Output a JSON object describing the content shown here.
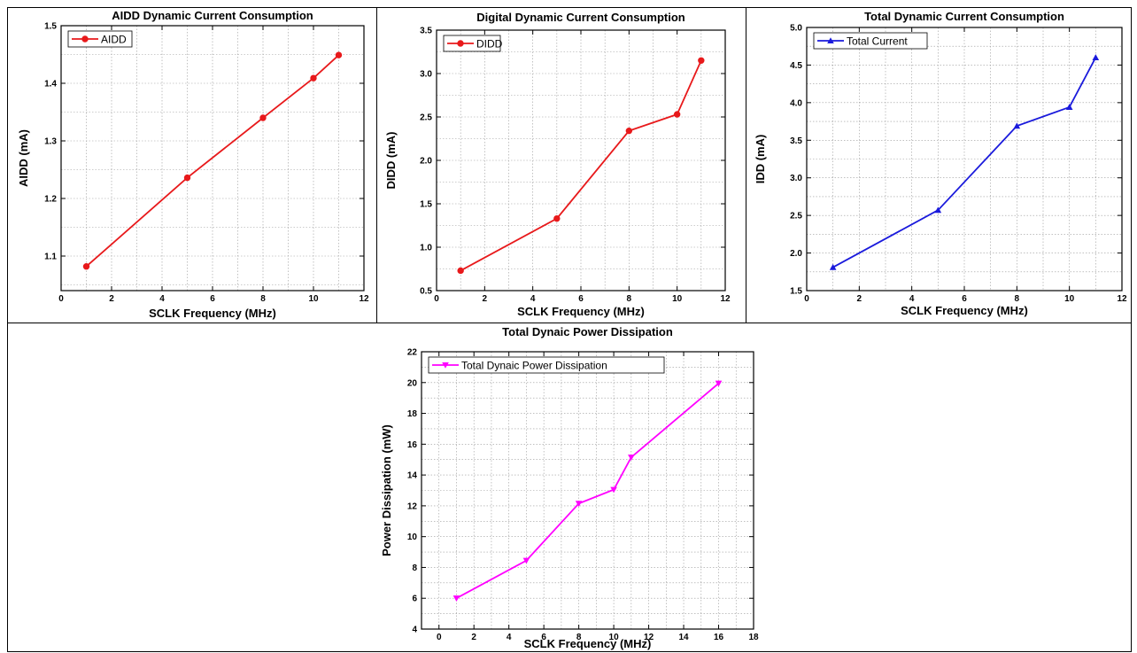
{
  "chart_data": [
    {
      "type": "line",
      "title": "AIDD Dynamic Current Consumption",
      "xlabel": "SCLK Frequency (MHz)",
      "ylabel": "AIDD (mA)",
      "xlim": [
        0,
        12
      ],
      "ylim": [
        1.04,
        1.5
      ],
      "xticks": [
        0,
        2,
        4,
        6,
        8,
        10,
        12
      ],
      "yticks": [
        1.1,
        1.2,
        1.3,
        1.4,
        1.5
      ],
      "ytick_labels": [
        "1.1",
        "1.2",
        "1.3",
        "1.4",
        "1.5"
      ],
      "xtick_labels": [
        "0",
        "2",
        "4",
        "6",
        "8",
        "10",
        "12"
      ],
      "grid": true,
      "legend_position": "top-left",
      "series": [
        {
          "name": "AIDD",
          "color": "#e8191b",
          "marker": "circle",
          "x": [
            1,
            5,
            8,
            10,
            11
          ],
          "y": [
            1.082,
            1.236,
            1.34,
            1.409,
            1.449
          ]
        }
      ]
    },
    {
      "type": "line",
      "title": "Digital Dynamic Current Consumption",
      "xlabel": "SCLK Frequency (MHz)",
      "ylabel": "DIDD (mA)",
      "xlim": [
        0,
        12
      ],
      "ylim": [
        0.5,
        3.5
      ],
      "xticks": [
        0,
        2,
        4,
        6,
        8,
        10,
        12
      ],
      "yticks": [
        0.5,
        1.0,
        1.5,
        2.0,
        2.5,
        3.0,
        3.5
      ],
      "ytick_labels": [
        "0.5",
        "1.0",
        "1.5",
        "2.0",
        "2.5",
        "3.0",
        "3.5"
      ],
      "xtick_labels": [
        "0",
        "2",
        "4",
        "6",
        "8",
        "10",
        "12"
      ],
      "grid": true,
      "legend_position": "top-left",
      "series": [
        {
          "name": "DIDD",
          "color": "#e8191b",
          "marker": "circle",
          "x": [
            1,
            5,
            8,
            10,
            11
          ],
          "y": [
            0.73,
            1.33,
            2.34,
            2.53,
            3.15
          ]
        }
      ]
    },
    {
      "type": "line",
      "title": "Total Dynamic Current Consumption",
      "xlabel": "SCLK Frequency (MHz)",
      "ylabel": "IDD (mA)",
      "xlim": [
        0,
        12
      ],
      "ylim": [
        1.5,
        5.0
      ],
      "xticks": [
        0,
        2,
        4,
        6,
        8,
        10,
        12
      ],
      "yticks": [
        1.5,
        2.0,
        2.5,
        3.0,
        3.5,
        4.0,
        4.5,
        5.0
      ],
      "ytick_labels": [
        "1.5",
        "2.0",
        "2.5",
        "3.0",
        "3.5",
        "4.0",
        "4.5",
        "5.0"
      ],
      "xtick_labels": [
        "0",
        "2",
        "4",
        "6",
        "8",
        "10",
        "12"
      ],
      "grid": true,
      "legend_position": "top-left",
      "series": [
        {
          "name": "Total Current",
          "color": "#1a1adc",
          "marker": "triangle-up",
          "x": [
            1,
            5,
            8,
            10,
            11
          ],
          "y": [
            1.81,
            2.57,
            3.69,
            3.94,
            4.6
          ]
        }
      ]
    },
    {
      "type": "line",
      "title": "Total Dynaic Power Dissipation",
      "xlabel": "SCLK Frequency (MHz)",
      "ylabel": "Power Dissipation (mW)",
      "xlim": [
        -1,
        18
      ],
      "ylim": [
        4,
        22
      ],
      "xticks": [
        0,
        2,
        4,
        6,
        8,
        10,
        12,
        14,
        16,
        18
      ],
      "yticks": [
        4,
        6,
        8,
        10,
        12,
        14,
        16,
        18,
        20,
        22
      ],
      "ytick_labels": [
        "4",
        "6",
        "8",
        "10",
        "12",
        "14",
        "16",
        "18",
        "20",
        "22"
      ],
      "xtick_labels": [
        "0",
        "2",
        "4",
        "6",
        "8",
        "10",
        "12",
        "14",
        "16",
        "18"
      ],
      "grid": true,
      "legend_position": "top-left",
      "series": [
        {
          "name": "Total Dynaic Power Dissipation",
          "color": "#ff00ff",
          "marker": "triangle-down",
          "x": [
            1,
            5,
            8,
            10,
            11,
            16
          ],
          "y": [
            6.0,
            8.45,
            12.15,
            13.05,
            15.15,
            19.95
          ]
        }
      ]
    }
  ]
}
